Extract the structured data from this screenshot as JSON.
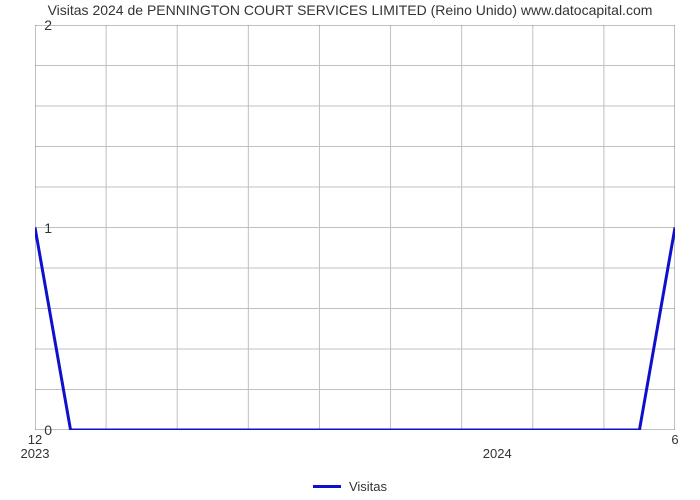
{
  "chart": {
    "type": "line",
    "title": "Visitas 2024 de PENNINGTON COURT SERVICES LIMITED (Reino Unido) www.datocapital.com",
    "title_fontsize": 14,
    "title_color": "#333333",
    "background_color": "#ffffff",
    "plot_border_color": "#808080",
    "grid_color": "#c0c0c0",
    "grid_line_width": 1,
    "series": {
      "name": "Visitas",
      "color": "#1010cc",
      "line_width": 3,
      "x": [
        0,
        1,
        2,
        3,
        4,
        5,
        6,
        7,
        8,
        9,
        10,
        11,
        12,
        13,
        14,
        15,
        16,
        17,
        18
      ],
      "y": [
        1,
        0,
        0,
        0,
        0,
        0,
        0,
        0,
        0,
        0,
        0,
        0,
        0,
        0,
        0,
        0,
        0,
        0,
        1
      ]
    },
    "x_axis": {
      "xlim": [
        0,
        18
      ],
      "major_ticks": [
        {
          "x": 0,
          "label": "12",
          "year": "2023"
        },
        {
          "x": 13,
          "label": "",
          "year": "2024"
        },
        {
          "x": 18,
          "label": "6",
          "year": ""
        }
      ],
      "minor_tick_count": 19,
      "grid_positions": [
        0,
        2,
        4,
        6,
        8,
        10,
        12,
        14,
        16,
        18
      ]
    },
    "y_axis": {
      "ylim": [
        0,
        2
      ],
      "major_ticks": [
        0,
        1,
        2
      ],
      "minor_steps": 5,
      "label_fontsize": 14
    },
    "legend": {
      "label": "Visitas",
      "position": "bottom-center",
      "swatch_color": "#1010cc",
      "fontsize": 13
    }
  }
}
